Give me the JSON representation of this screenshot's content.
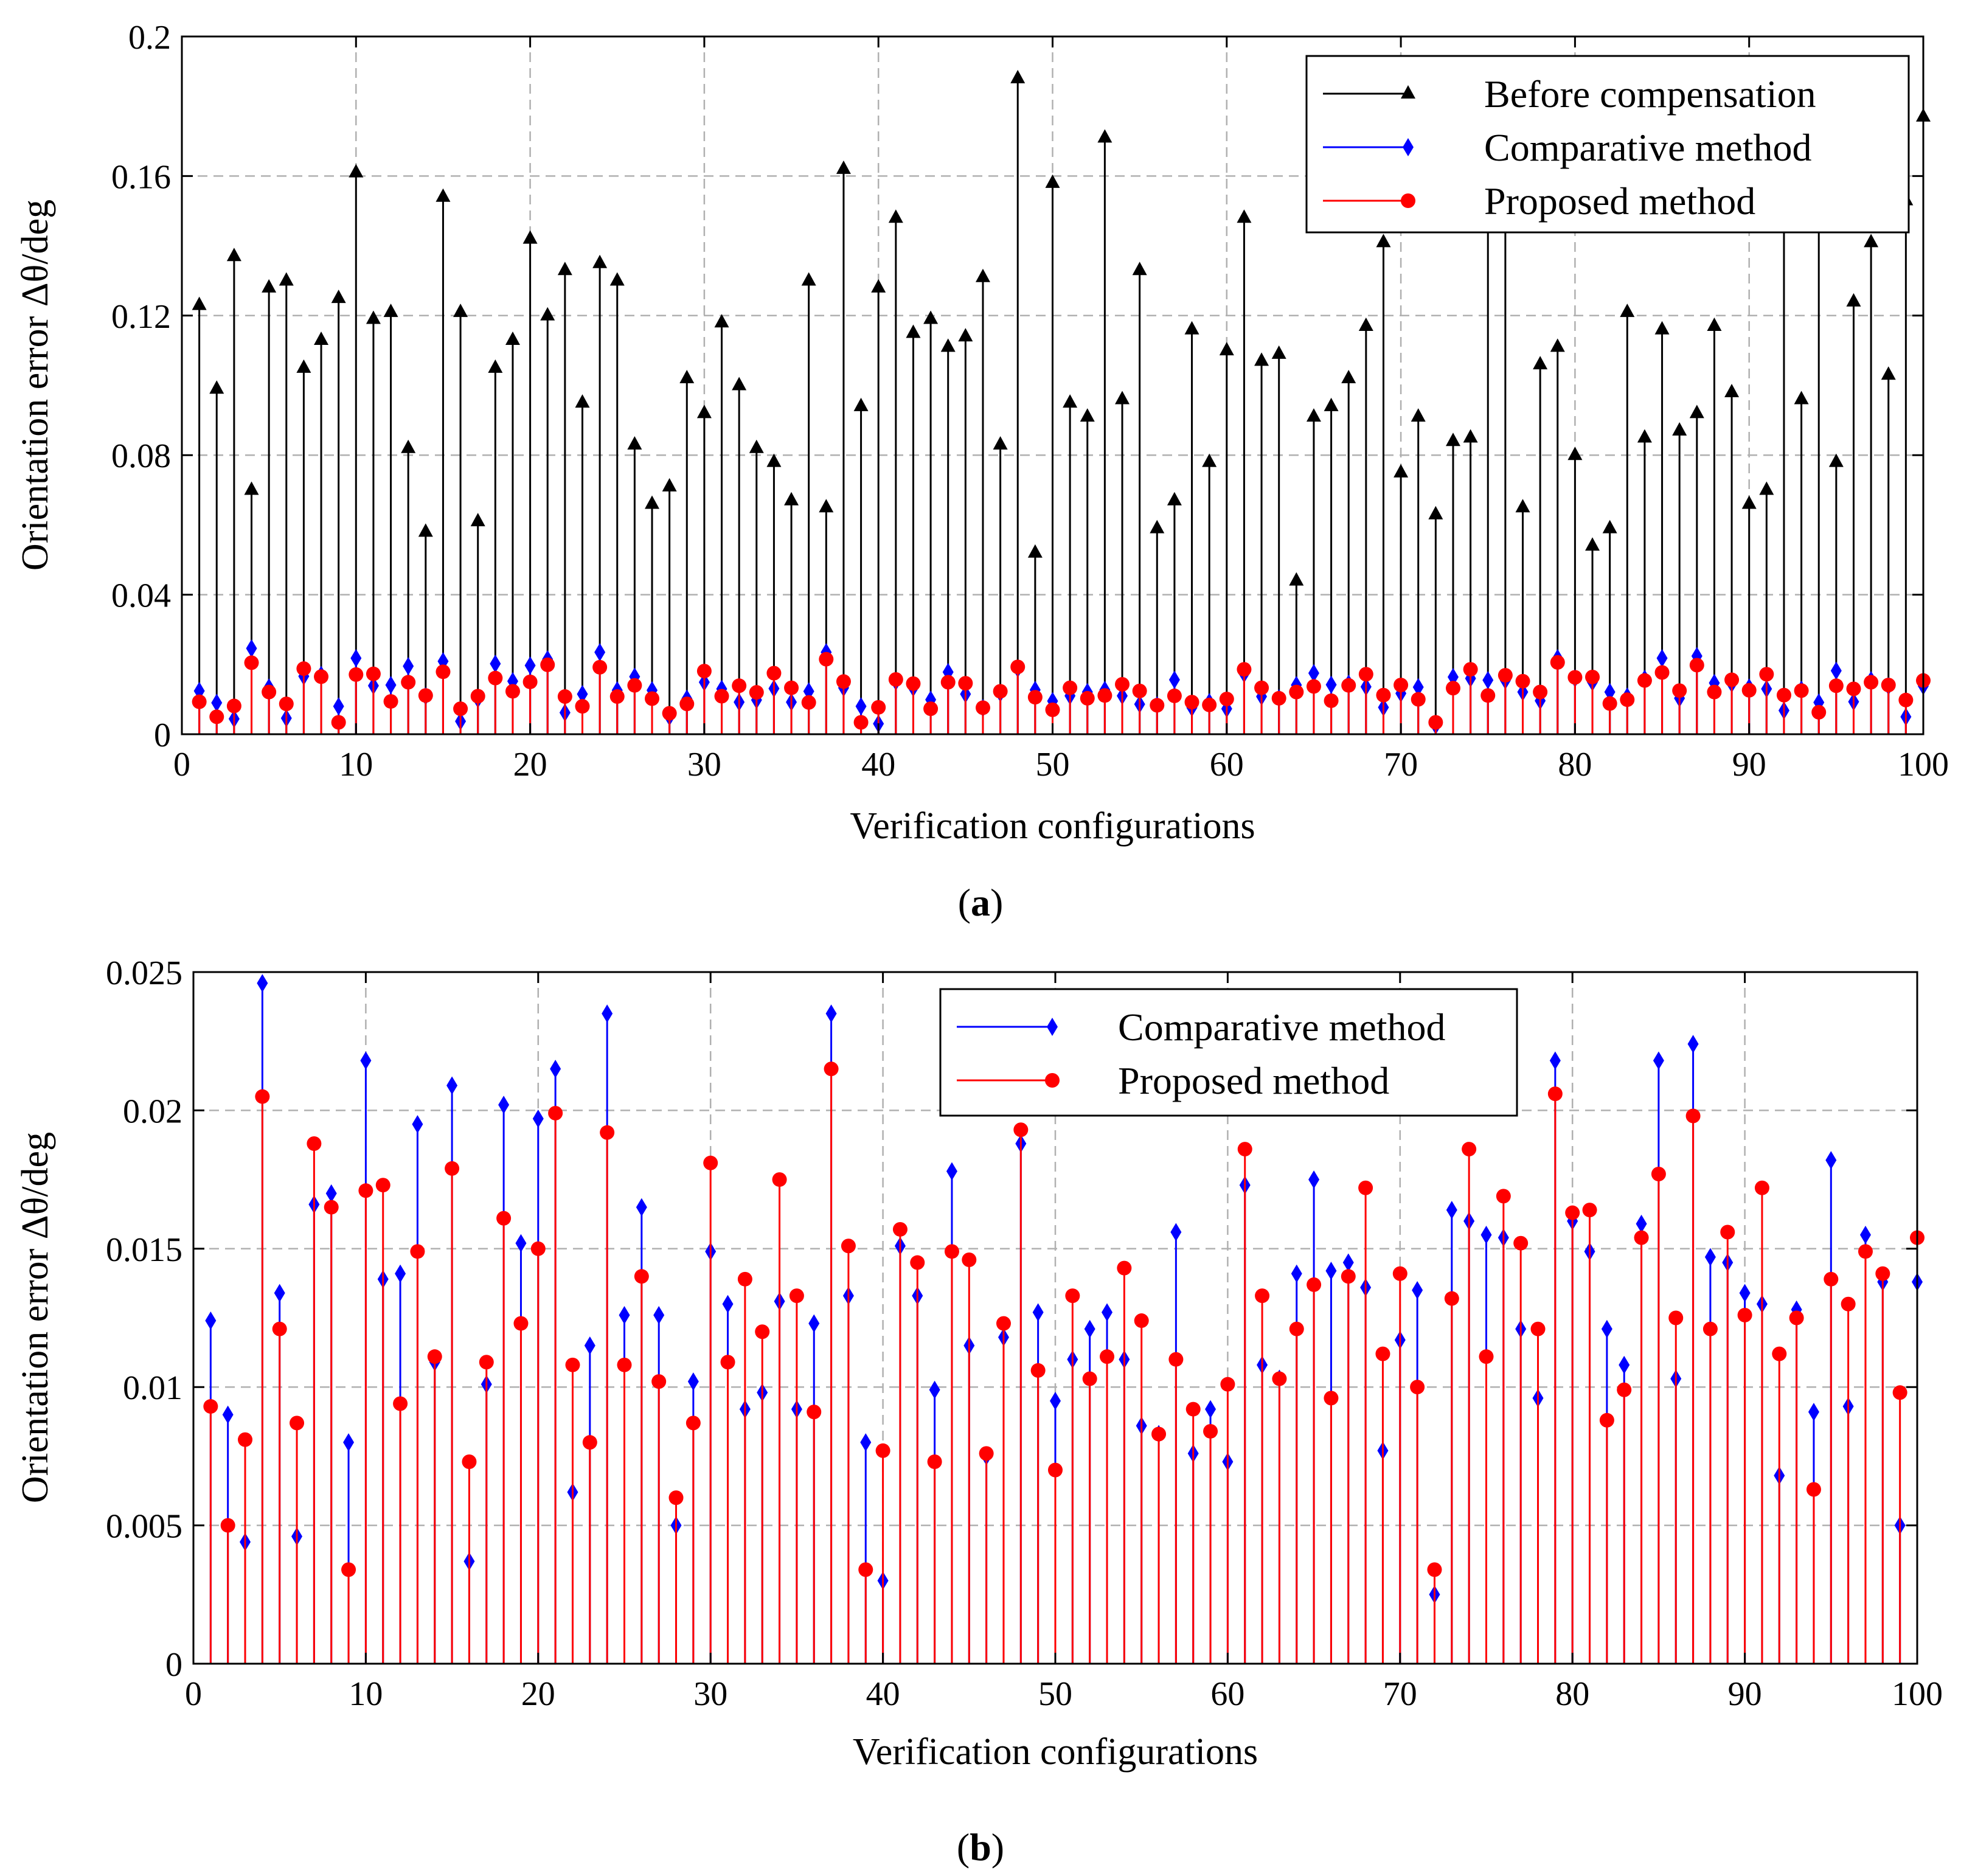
{
  "chart_data": [
    {
      "type": "stem",
      "panel_label": "a",
      "xlabel": "Verification configurations",
      "ylabel": "Orientation error Δθ/deg",
      "xlim": [
        0,
        100
      ],
      "ylim": [
        0,
        0.2
      ],
      "xticks": [
        0,
        10,
        20,
        30,
        40,
        50,
        60,
        70,
        80,
        90,
        100
      ],
      "xtick_labels": [
        "0",
        "10",
        "20",
        "30",
        "40",
        "50",
        "60",
        "70",
        "80",
        "90",
        "100"
      ],
      "yticks": [
        0,
        0.04,
        0.08,
        0.12,
        0.16,
        0.2
      ],
      "ytick_labels": [
        "0",
        "0.04",
        "0.08",
        "0.12",
        "0.16",
        "0.2"
      ],
      "grid": true,
      "legend_position": "top-right",
      "series": [
        {
          "name": "Before compensation",
          "color": "#000000",
          "marker": "triangle",
          "values": [
            0.123,
            0.099,
            0.137,
            0.07,
            0.128,
            0.13,
            0.105,
            0.113,
            0.125,
            0.161,
            0.119,
            0.121,
            0.082,
            0.058,
            0.154,
            0.121,
            0.061,
            0.105,
            0.113,
            0.142,
            0.12,
            0.133,
            0.095,
            0.135,
            0.13,
            0.083,
            0.066,
            0.071,
            0.102,
            0.092,
            0.118,
            0.1,
            0.082,
            0.078,
            0.067,
            0.13,
            0.065,
            0.162,
            0.094,
            0.128,
            0.148,
            0.115,
            0.119,
            0.111,
            0.114,
            0.131,
            0.083,
            0.188,
            0.052,
            0.158,
            0.095,
            0.091,
            0.171,
            0.096,
            0.133,
            0.059,
            0.067,
            0.116,
            0.078,
            0.11,
            0.148,
            0.107,
            0.109,
            0.044,
            0.091,
            0.094,
            0.102,
            0.117,
            0.141,
            0.075,
            0.091,
            0.063,
            0.084,
            0.085,
            0.148,
            0.157,
            0.065,
            0.106,
            0.111,
            0.08,
            0.054,
            0.059,
            0.121,
            0.085,
            0.116,
            0.087,
            0.092,
            0.117,
            0.098,
            0.066,
            0.07,
            0.148,
            0.096,
            0.149,
            0.078,
            0.124,
            0.141,
            0.103,
            0.153,
            0.177
          ]
        },
        {
          "name": "Comparative method",
          "color": "#0000FF",
          "marker": "diamond",
          "values": [
            0.0124,
            0.009,
            0.0044,
            0.0246,
            0.0134,
            0.0046,
            0.0166,
            0.017,
            0.008,
            0.0218,
            0.0139,
            0.0141,
            0.0195,
            0.0109,
            0.0209,
            0.0037,
            0.0101,
            0.0202,
            0.0152,
            0.0197,
            0.0215,
            0.0062,
            0.0115,
            0.0235,
            0.0126,
            0.0165,
            0.0126,
            0.005,
            0.0102,
            0.0149,
            0.013,
            0.0092,
            0.0098,
            0.0131,
            0.0092,
            0.0123,
            0.0235,
            0.0133,
            0.008,
            0.003,
            0.0151,
            0.0133,
            0.0099,
            0.0178,
            0.0115,
            0.0075,
            0.0118,
            0.0188,
            0.0127,
            0.0095,
            0.011,
            0.0121,
            0.0127,
            0.011,
            0.0086,
            0.0083,
            0.0156,
            0.0076,
            0.0092,
            0.0073,
            0.0173,
            0.0108,
            0.0103,
            0.0141,
            0.0175,
            0.0142,
            0.0145,
            0.0136,
            0.0077,
            0.0117,
            0.0135,
            0.0025,
            0.0164,
            0.016,
            0.0155,
            0.0154,
            0.0121,
            0.0096,
            0.0218,
            0.016,
            0.0149,
            0.0121,
            0.0108,
            0.0159,
            0.0218,
            0.0103,
            0.0224,
            0.0147,
            0.0145,
            0.0134,
            0.013,
            0.0068,
            0.0128,
            0.0091,
            0.0182,
            0.0093,
            0.0155,
            0.0138,
            0.005,
            0.0138
          ]
        },
        {
          "name": "Proposed method",
          "color": "#FF0000",
          "marker": "circle",
          "values": [
            0.0093,
            0.005,
            0.0081,
            0.0205,
            0.0121,
            0.0087,
            0.0188,
            0.0165,
            0.0034,
            0.0171,
            0.0173,
            0.0094,
            0.0149,
            0.0111,
            0.0179,
            0.0073,
            0.0109,
            0.0161,
            0.0123,
            0.015,
            0.0199,
            0.0108,
            0.008,
            0.0192,
            0.0108,
            0.014,
            0.0102,
            0.006,
            0.0087,
            0.0181,
            0.0109,
            0.0139,
            0.012,
            0.0175,
            0.0133,
            0.0091,
            0.0215,
            0.0151,
            0.0034,
            0.0077,
            0.0157,
            0.0145,
            0.0073,
            0.0149,
            0.0146,
            0.0076,
            0.0123,
            0.0193,
            0.0106,
            0.007,
            0.0133,
            0.0103,
            0.0111,
            0.0143,
            0.0124,
            0.0083,
            0.011,
            0.0092,
            0.0084,
            0.0101,
            0.0186,
            0.0133,
            0.0103,
            0.0121,
            0.0137,
            0.0096,
            0.014,
            0.0172,
            0.0112,
            0.0141,
            0.01,
            0.0034,
            0.0132,
            0.0186,
            0.0111,
            0.0169,
            0.0152,
            0.0121,
            0.0206,
            0.0163,
            0.0164,
            0.0088,
            0.0099,
            0.0154,
            0.0177,
            0.0125,
            0.0198,
            0.0121,
            0.0156,
            0.0126,
            0.0172,
            0.0112,
            0.0125,
            0.0063,
            0.0139,
            0.013,
            0.0149,
            0.0141,
            0.0098,
            0.0154
          ]
        }
      ]
    },
    {
      "type": "stem",
      "panel_label": "b",
      "xlabel": "Verification configurations",
      "ylabel": "Orientation error Δθ/deg",
      "xlim": [
        0,
        100
      ],
      "ylim": [
        0,
        0.025
      ],
      "xticks": [
        0,
        10,
        20,
        30,
        40,
        50,
        60,
        70,
        80,
        90,
        100
      ],
      "xtick_labels": [
        "0",
        "10",
        "20",
        "30",
        "40",
        "50",
        "60",
        "70",
        "80",
        "90",
        "100"
      ],
      "yticks": [
        0,
        0.005,
        0.01,
        0.015,
        0.02,
        0.025
      ],
      "ytick_labels": [
        "0",
        "0.005",
        "0.01",
        "0.015",
        "0.02",
        "0.025"
      ],
      "grid": true,
      "legend_position": "top-right",
      "series": [
        {
          "name": "Comparative method",
          "color": "#0000FF",
          "marker": "diamond",
          "values": [
            0.0124,
            0.009,
            0.0044,
            0.0246,
            0.0134,
            0.0046,
            0.0166,
            0.017,
            0.008,
            0.0218,
            0.0139,
            0.0141,
            0.0195,
            0.0109,
            0.0209,
            0.0037,
            0.0101,
            0.0202,
            0.0152,
            0.0197,
            0.0215,
            0.0062,
            0.0115,
            0.0235,
            0.0126,
            0.0165,
            0.0126,
            0.005,
            0.0102,
            0.0149,
            0.013,
            0.0092,
            0.0098,
            0.0131,
            0.0092,
            0.0123,
            0.0235,
            0.0133,
            0.008,
            0.003,
            0.0151,
            0.0133,
            0.0099,
            0.0178,
            0.0115,
            0.0075,
            0.0118,
            0.0188,
            0.0127,
            0.0095,
            0.011,
            0.0121,
            0.0127,
            0.011,
            0.0086,
            0.0083,
            0.0156,
            0.0076,
            0.0092,
            0.0073,
            0.0173,
            0.0108,
            0.0103,
            0.0141,
            0.0175,
            0.0142,
            0.0145,
            0.0136,
            0.0077,
            0.0117,
            0.0135,
            0.0025,
            0.0164,
            0.016,
            0.0155,
            0.0154,
            0.0121,
            0.0096,
            0.0218,
            0.016,
            0.0149,
            0.0121,
            0.0108,
            0.0159,
            0.0218,
            0.0103,
            0.0224,
            0.0147,
            0.0145,
            0.0134,
            0.013,
            0.0068,
            0.0128,
            0.0091,
            0.0182,
            0.0093,
            0.0155,
            0.0138,
            0.005,
            0.0138
          ]
        },
        {
          "name": "Proposed method",
          "color": "#FF0000",
          "marker": "circle",
          "values": [
            0.0093,
            0.005,
            0.0081,
            0.0205,
            0.0121,
            0.0087,
            0.0188,
            0.0165,
            0.0034,
            0.0171,
            0.0173,
            0.0094,
            0.0149,
            0.0111,
            0.0179,
            0.0073,
            0.0109,
            0.0161,
            0.0123,
            0.015,
            0.0199,
            0.0108,
            0.008,
            0.0192,
            0.0108,
            0.014,
            0.0102,
            0.006,
            0.0087,
            0.0181,
            0.0109,
            0.0139,
            0.012,
            0.0175,
            0.0133,
            0.0091,
            0.0215,
            0.0151,
            0.0034,
            0.0077,
            0.0157,
            0.0145,
            0.0073,
            0.0149,
            0.0146,
            0.0076,
            0.0123,
            0.0193,
            0.0106,
            0.007,
            0.0133,
            0.0103,
            0.0111,
            0.0143,
            0.0124,
            0.0083,
            0.011,
            0.0092,
            0.0084,
            0.0101,
            0.0186,
            0.0133,
            0.0103,
            0.0121,
            0.0137,
            0.0096,
            0.014,
            0.0172,
            0.0112,
            0.0141,
            0.01,
            0.0034,
            0.0132,
            0.0186,
            0.0111,
            0.0169,
            0.0152,
            0.0121,
            0.0206,
            0.0163,
            0.0164,
            0.0088,
            0.0099,
            0.0154,
            0.0177,
            0.0125,
            0.0198,
            0.0121,
            0.0156,
            0.0126,
            0.0172,
            0.0112,
            0.0125,
            0.0063,
            0.0139,
            0.013,
            0.0149,
            0.0141,
            0.0098,
            0.0154
          ]
        }
      ]
    }
  ]
}
